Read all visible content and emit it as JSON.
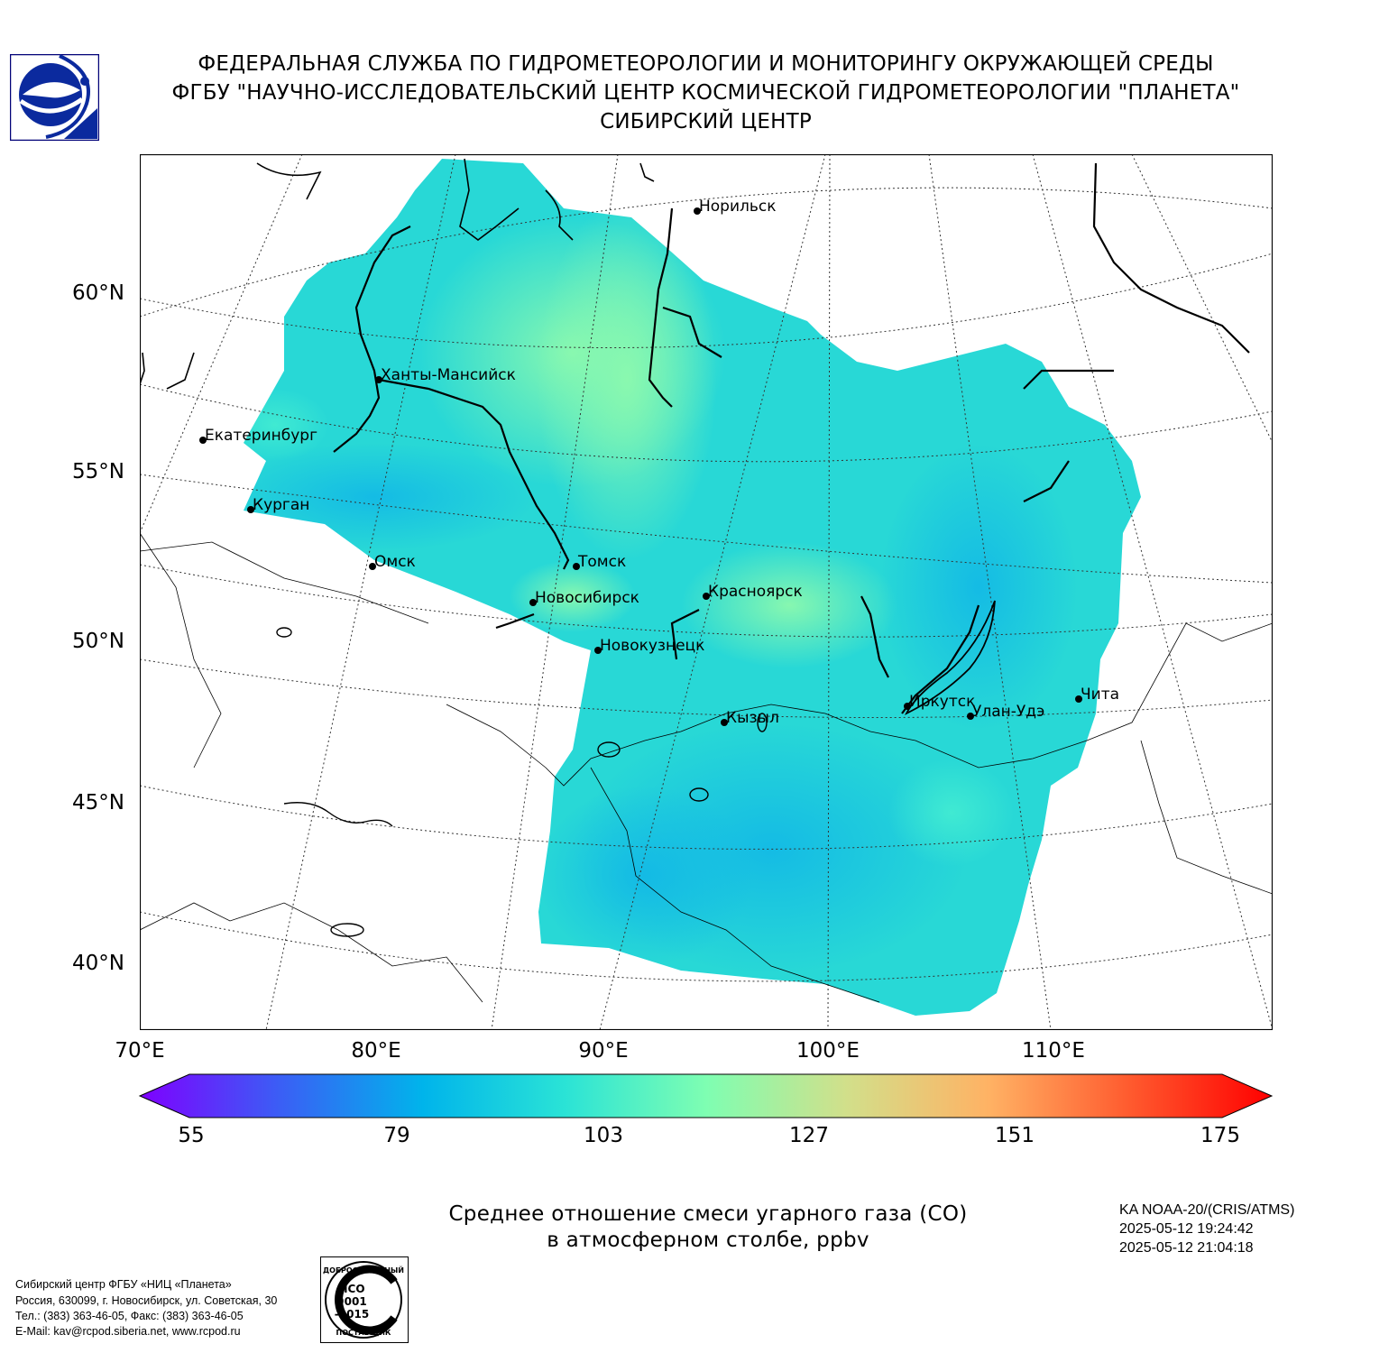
{
  "header": {
    "line1": "ФЕДЕРАЛЬНАЯ СЛУЖБА ПО ГИДРОМЕТЕОРОЛОГИИ И МОНИТОРИНГУ ОКРУЖАЮЩЕЙ СРЕДЫ",
    "line2": "ФГБУ \"НАУЧНО-ИССЛЕДОВАТЕЛЬСКИЙ ЦЕНТР КОСМИЧЕСКОЙ ГИДРОМЕТЕОРОЛОГИИ \"ПЛАНЕТА\"",
    "line3": "СИБИРСКИЙ ЦЕНТР"
  },
  "map": {
    "lat_labels": [
      "60°N",
      "55°N",
      "50°N",
      "45°N",
      "40°N"
    ],
    "lon_labels": [
      "70°E",
      "80°E",
      "90°E",
      "100°E",
      "110°E"
    ],
    "cities": [
      {
        "name": "Норильск"
      },
      {
        "name": "Ханты-Мансийск"
      },
      {
        "name": "Екатеринбург"
      },
      {
        "name": "Курган"
      },
      {
        "name": "Омск"
      },
      {
        "name": "Томск"
      },
      {
        "name": "Новосибирск"
      },
      {
        "name": "Красноярск"
      },
      {
        "name": "Новокузнецк"
      },
      {
        "name": "Кызыл"
      },
      {
        "name": "Иркутск"
      },
      {
        "name": "Улан-Удэ"
      },
      {
        "name": "Чита"
      }
    ]
  },
  "colorbar": {
    "labels": [
      "55",
      "79",
      "103",
      "127",
      "151",
      "175"
    ],
    "colors": [
      "#7f00ff",
      "#3a5ff5",
      "#00b4eb",
      "#2ae3d6",
      "#7efeb2",
      "#d2df8a",
      "#ffb264",
      "#ff5a2e",
      "#ff0000"
    ]
  },
  "title": {
    "line1": "Среднее отношение смеси угарного газа (CO)",
    "line2": "в атмосферном столбе, ppbv"
  },
  "satellite": {
    "instrument": "KA NOAA-20/(CRIS/ATMS)",
    "time_start": "2025-05-12 19:24:42",
    "time_end": "2025-05-12 21:04:18"
  },
  "footer": {
    "line1": "Сибирский центр ФГБУ «НИЦ «Планета»",
    "line2": "Россия, 630099, г. Новосибирск, ул. Советская, 30",
    "line3": "Тел.: (383) 363-46-05, Факс: (383) 363-46-05",
    "line4": "E-Mail: kav@rcpod.siberia.net, www.rcpod.ru"
  },
  "iso_stamp": {
    "top": "ДОБРОСОВЕСТНЫЙ",
    "line1": "ИСО",
    "line2": "9001",
    "line3": "-2015",
    "bottom": "ПОСТАВЩИК"
  }
}
